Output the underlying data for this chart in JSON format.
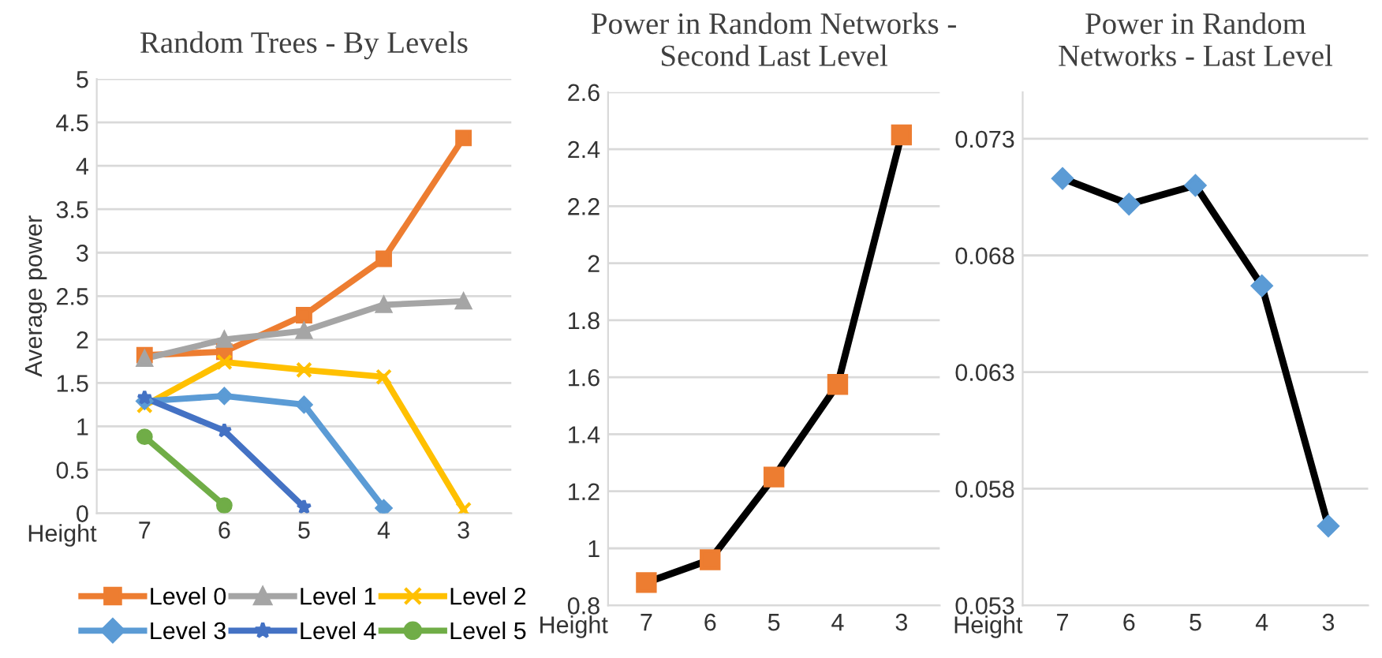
{
  "chart_data": [
    {
      "type": "line",
      "title": "Random Trees - By Levels",
      "xlabel": "Height",
      "ylabel": "Average power",
      "categories": [
        "7",
        "6",
        "5",
        "4",
        "3"
      ],
      "ylim": [
        0,
        5
      ],
      "yticks": [
        0,
        0.5,
        1,
        1.5,
        2,
        2.5,
        3,
        3.5,
        4,
        4.5,
        5
      ],
      "grid": "y",
      "legend": "bottom",
      "series": [
        {
          "name": "Level 0",
          "color": "#ed7d31",
          "marker": "square",
          "values": [
            1.82,
            1.86,
            2.28,
            2.93,
            4.32
          ]
        },
        {
          "name": "Level 1",
          "color": "#a5a5a5",
          "marker": "triangle",
          "values": [
            1.78,
            2.0,
            2.1,
            2.4,
            2.44
          ]
        },
        {
          "name": "Level 2",
          "color": "#ffc000",
          "marker": "cross",
          "values": [
            1.24,
            1.74,
            1.65,
            1.57,
            0.04
          ]
        },
        {
          "name": "Level 3",
          "color": "#5b9bd5",
          "marker": "diamond",
          "values": [
            1.29,
            1.35,
            1.25,
            0.06,
            null
          ]
        },
        {
          "name": "Level 4",
          "color": "#4472c4",
          "marker": "star",
          "values": [
            1.33,
            0.95,
            0.07,
            null,
            null
          ]
        },
        {
          "name": "Level 5",
          "color": "#70ad47",
          "marker": "circle",
          "values": [
            0.88,
            0.09,
            null,
            null,
            null
          ]
        }
      ]
    },
    {
      "type": "line",
      "title": "Power in Random Networks - Second Last Level",
      "xlabel": "Height",
      "categories": [
        "7",
        "6",
        "5",
        "4",
        "3"
      ],
      "ylim": [
        0.8,
        2.6
      ],
      "yticks": [
        0.8,
        1,
        1.2,
        1.4,
        1.6,
        1.8,
        2,
        2.2,
        2.4,
        2.6
      ],
      "grid": "y",
      "series": [
        {
          "color": "#000000",
          "marker": "square",
          "colors": [
            "#ed7d31",
            "#ed7d31",
            "#ed7d31",
            "#ed7d31",
            "#ed7d31"
          ],
          "values": [
            0.88,
            0.96,
            1.25,
            1.575,
            2.45
          ]
        }
      ]
    },
    {
      "type": "line",
      "title": "Power in Random Networks - Last Level",
      "xlabel": "Height",
      "categories": [
        "7",
        "6",
        "5",
        "4",
        "3"
      ],
      "ylim": [
        0.053,
        0.075
      ],
      "yticks": [
        0.053,
        0.058,
        0.063,
        0.068,
        0.073
      ],
      "grid": "y",
      "series": [
        {
          "color": "#000000",
          "marker": "diamond",
          "colors": [
            "#5b9bd5",
            "#5b9bd5",
            "#5b9bd5",
            "#5b9bd5",
            "#5b9bd5"
          ],
          "values": [
            0.0713,
            0.0702,
            0.071,
            0.0667,
            0.0564
          ]
        }
      ]
    }
  ]
}
